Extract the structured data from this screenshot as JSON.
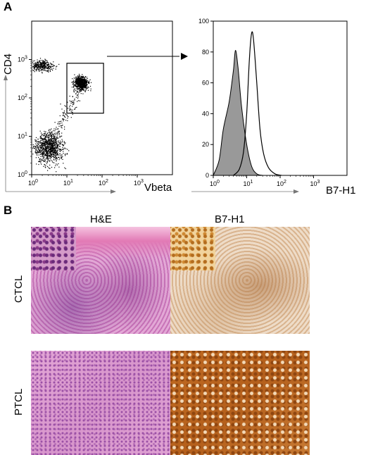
{
  "panel_a": {
    "letter": "A",
    "scatter": {
      "ylabel": "CD4",
      "xlabel": "Vbeta",
      "x_ticks": [
        "10",
        "10",
        "10",
        "10"
      ],
      "x_exps": [
        "0",
        "1",
        "2",
        "3"
      ],
      "y_ticks": [
        "10",
        "10",
        "10",
        "10"
      ],
      "y_exps": [
        "0",
        "1",
        "2",
        "3"
      ]
    },
    "histogram": {
      "xlabel": "B7-H1",
      "y_ticks": [
        "0",
        "20",
        "40",
        "60",
        "80",
        "100"
      ],
      "x_ticks": [
        "10",
        "10",
        "10",
        "10"
      ],
      "x_exps": [
        "0",
        "1",
        "2",
        "3"
      ]
    }
  },
  "panel_b": {
    "letter": "B",
    "col_he": "H&E",
    "col_b7": "B7-H1",
    "row_ctcl": "CTCL",
    "row_ptcl": "PTCL"
  },
  "chart_data": [
    {
      "type": "scatter",
      "xlabel": "Vbeta",
      "ylabel": "CD4",
      "xscale": "log",
      "yscale": "log",
      "xlim": [
        1,
        10000
      ],
      "ylim": [
        1,
        10000
      ],
      "populations": [
        {
          "center": [
            3,
            5
          ],
          "description": "double-low cluster"
        },
        {
          "center": [
            2,
            700
          ],
          "description": "CD4+ Vbeta- cluster"
        },
        {
          "center": [
            25,
            250
          ],
          "description": "CD4+ Vbeta+ gated cluster"
        }
      ],
      "gate": {
        "x": [
          10,
          110
        ],
        "y": [
          40,
          800
        ]
      }
    },
    {
      "type": "area",
      "xlabel": "B7-H1",
      "xscale": "log",
      "xlim": [
        1,
        10000
      ],
      "ylim": [
        0,
        100
      ],
      "series": [
        {
          "fill": "#999999",
          "x": [
            1,
            1.5,
            2,
            3,
            4,
            4.6,
            5.5,
            7,
            10,
            14,
            20,
            30
          ],
          "y": [
            0,
            10,
            30,
            48,
            68,
            81,
            70,
            45,
            20,
            6,
            1,
            0
          ]
        },
        {
          "fill": "none",
          "x": [
            4,
            6,
            8,
            10,
            12,
            14,
            16,
            20,
            25,
            32,
            45,
            70,
            110
          ],
          "y": [
            0,
            4,
            15,
            40,
            75,
            92,
            88,
            60,
            30,
            14,
            5,
            1,
            0
          ]
        }
      ]
    }
  ]
}
